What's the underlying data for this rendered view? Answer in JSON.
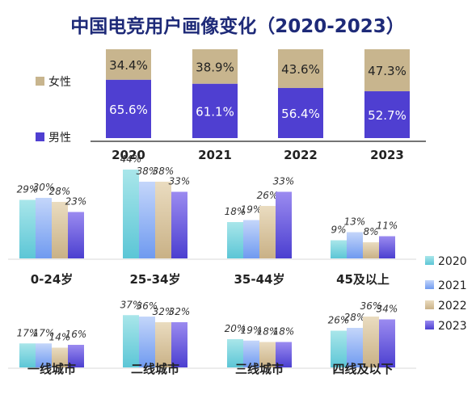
{
  "title": "中国电竞用户画像变化（2020-2023）",
  "colors": {
    "title": "#1e2a78",
    "female": "#c8b58e",
    "male": "#4f3fd1",
    "text": "#222222",
    "axis": "#222222",
    "grid": "#d9d9d9",
    "y2020_top": "#a9e6ea",
    "y2020_bottom": "#5cc6d6",
    "y2021_top": "#c4d6fa",
    "y2021_bottom": "#6f9af0",
    "y2022_top": "#eadcc0",
    "y2022_bottom": "#c9b186",
    "y2023_top": "#9b8bf0",
    "y2023_bottom": "#4b3fd0"
  },
  "chart_data": [
    {
      "type": "bar",
      "stacked": true,
      "categories": [
        "2020",
        "2021",
        "2022",
        "2023"
      ],
      "series": [
        {
          "name": "男性",
          "values": [
            65.6,
            61.1,
            56.4,
            52.7
          ],
          "labels": [
            "65.6%",
            "61.1%",
            "56.4%",
            "52.7%"
          ]
        },
        {
          "name": "女性",
          "values": [
            34.4,
            38.9,
            43.6,
            47.3
          ],
          "labels": [
            "34.4%",
            "38.9%",
            "43.6%",
            "47.3%"
          ]
        }
      ],
      "legend": [
        "女性",
        "男性"
      ]
    },
    {
      "type": "bar",
      "categories": [
        "0-24岁",
        "25-34岁",
        "35-44岁",
        "45及以上"
      ],
      "series": [
        {
          "name": "2020",
          "values": [
            29,
            44,
            18,
            9
          ]
        },
        {
          "name": "2021",
          "values": [
            30,
            38,
            19,
            13
          ]
        },
        {
          "name": "2022",
          "values": [
            28,
            38,
            26,
            8
          ]
        },
        {
          "name": "2023",
          "values": [
            23,
            33,
            33,
            11
          ]
        }
      ]
    },
    {
      "type": "bar",
      "categories": [
        "一线城市",
        "二线城市",
        "三线城市",
        "四线及以下"
      ],
      "series": [
        {
          "name": "2020",
          "values": [
            17,
            37,
            20,
            26
          ]
        },
        {
          "name": "2021",
          "values": [
            17,
            36,
            19,
            28
          ]
        },
        {
          "name": "2022",
          "values": [
            14,
            32,
            18,
            36
          ]
        },
        {
          "name": "2023",
          "values": [
            16,
            32,
            18,
            34
          ]
        }
      ]
    }
  ],
  "legend_years": [
    "2020",
    "2021",
    "2022",
    "2023"
  ]
}
